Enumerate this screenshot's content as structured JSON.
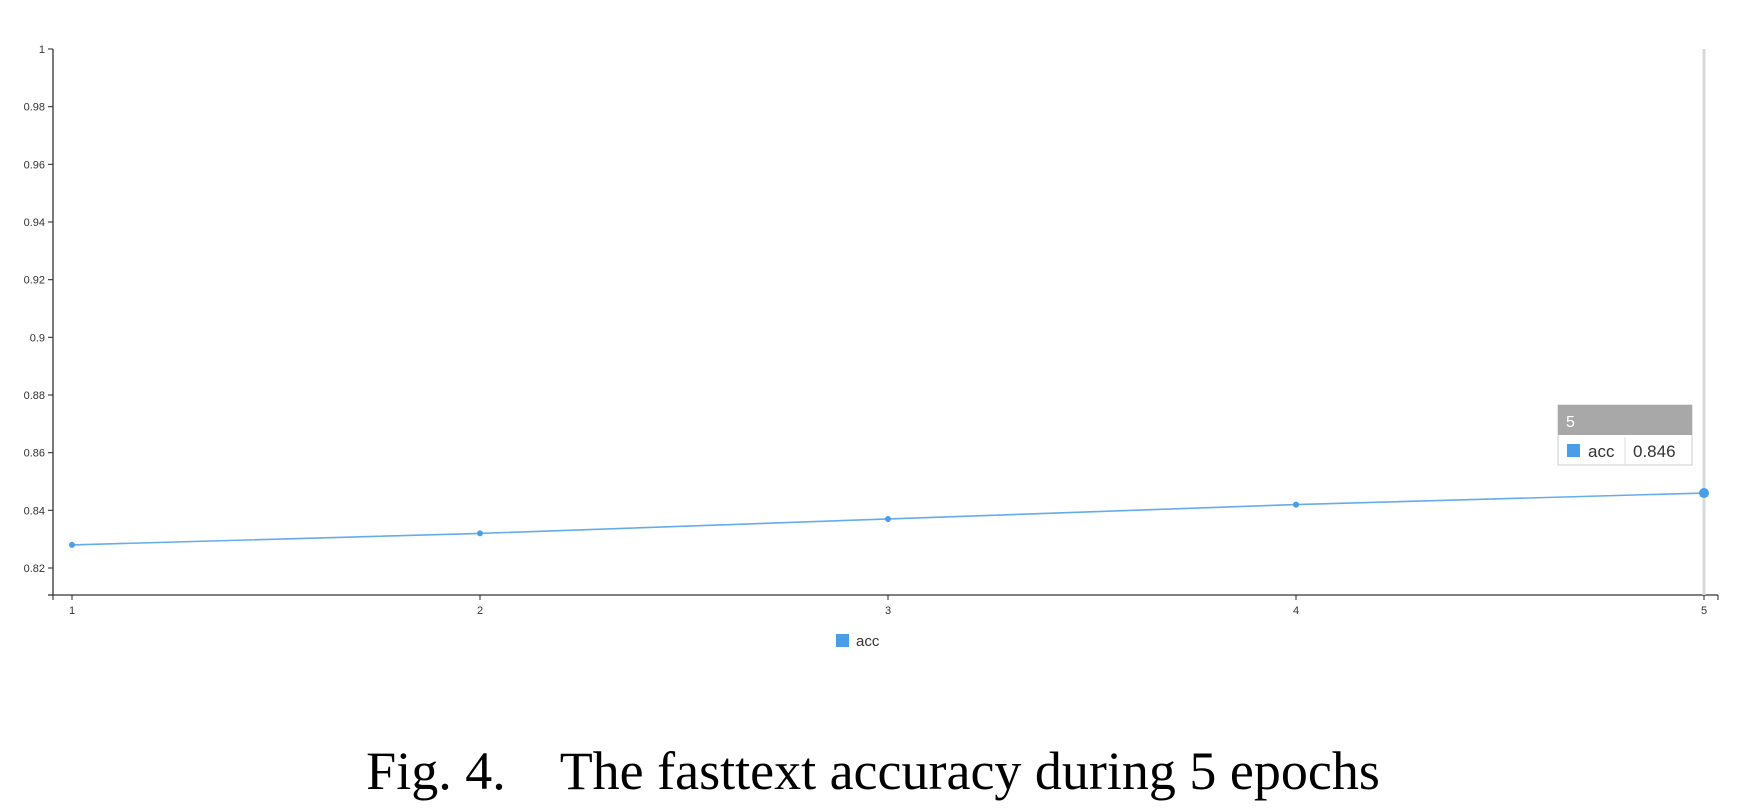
{
  "caption": "Fig. 4. The fasttext accuracy during 5 epochs",
  "chart_data": {
    "type": "line",
    "x": [
      1,
      2,
      3,
      4,
      5
    ],
    "series": [
      {
        "name": "acc",
        "values": [
          0.828,
          0.832,
          0.837,
          0.842,
          0.846
        ],
        "color": "#4a9ee8"
      }
    ],
    "xlim": [
      1,
      5
    ],
    "ylim": [
      0.81,
      1
    ],
    "x_ticks": [
      "1",
      "2",
      "3",
      "4",
      "5"
    ],
    "y_ticks": [
      "0.82",
      "0.84",
      "0.86",
      "0.88",
      "0.9",
      "0.92",
      "0.94",
      "0.96",
      "0.98",
      "1"
    ],
    "legend": {
      "position": "bottom-center",
      "label": "acc"
    },
    "tooltip": {
      "title": "5",
      "series_name": "acc",
      "value": "0.846"
    },
    "grid": false,
    "title": "",
    "xlabel": "",
    "ylabel": ""
  }
}
